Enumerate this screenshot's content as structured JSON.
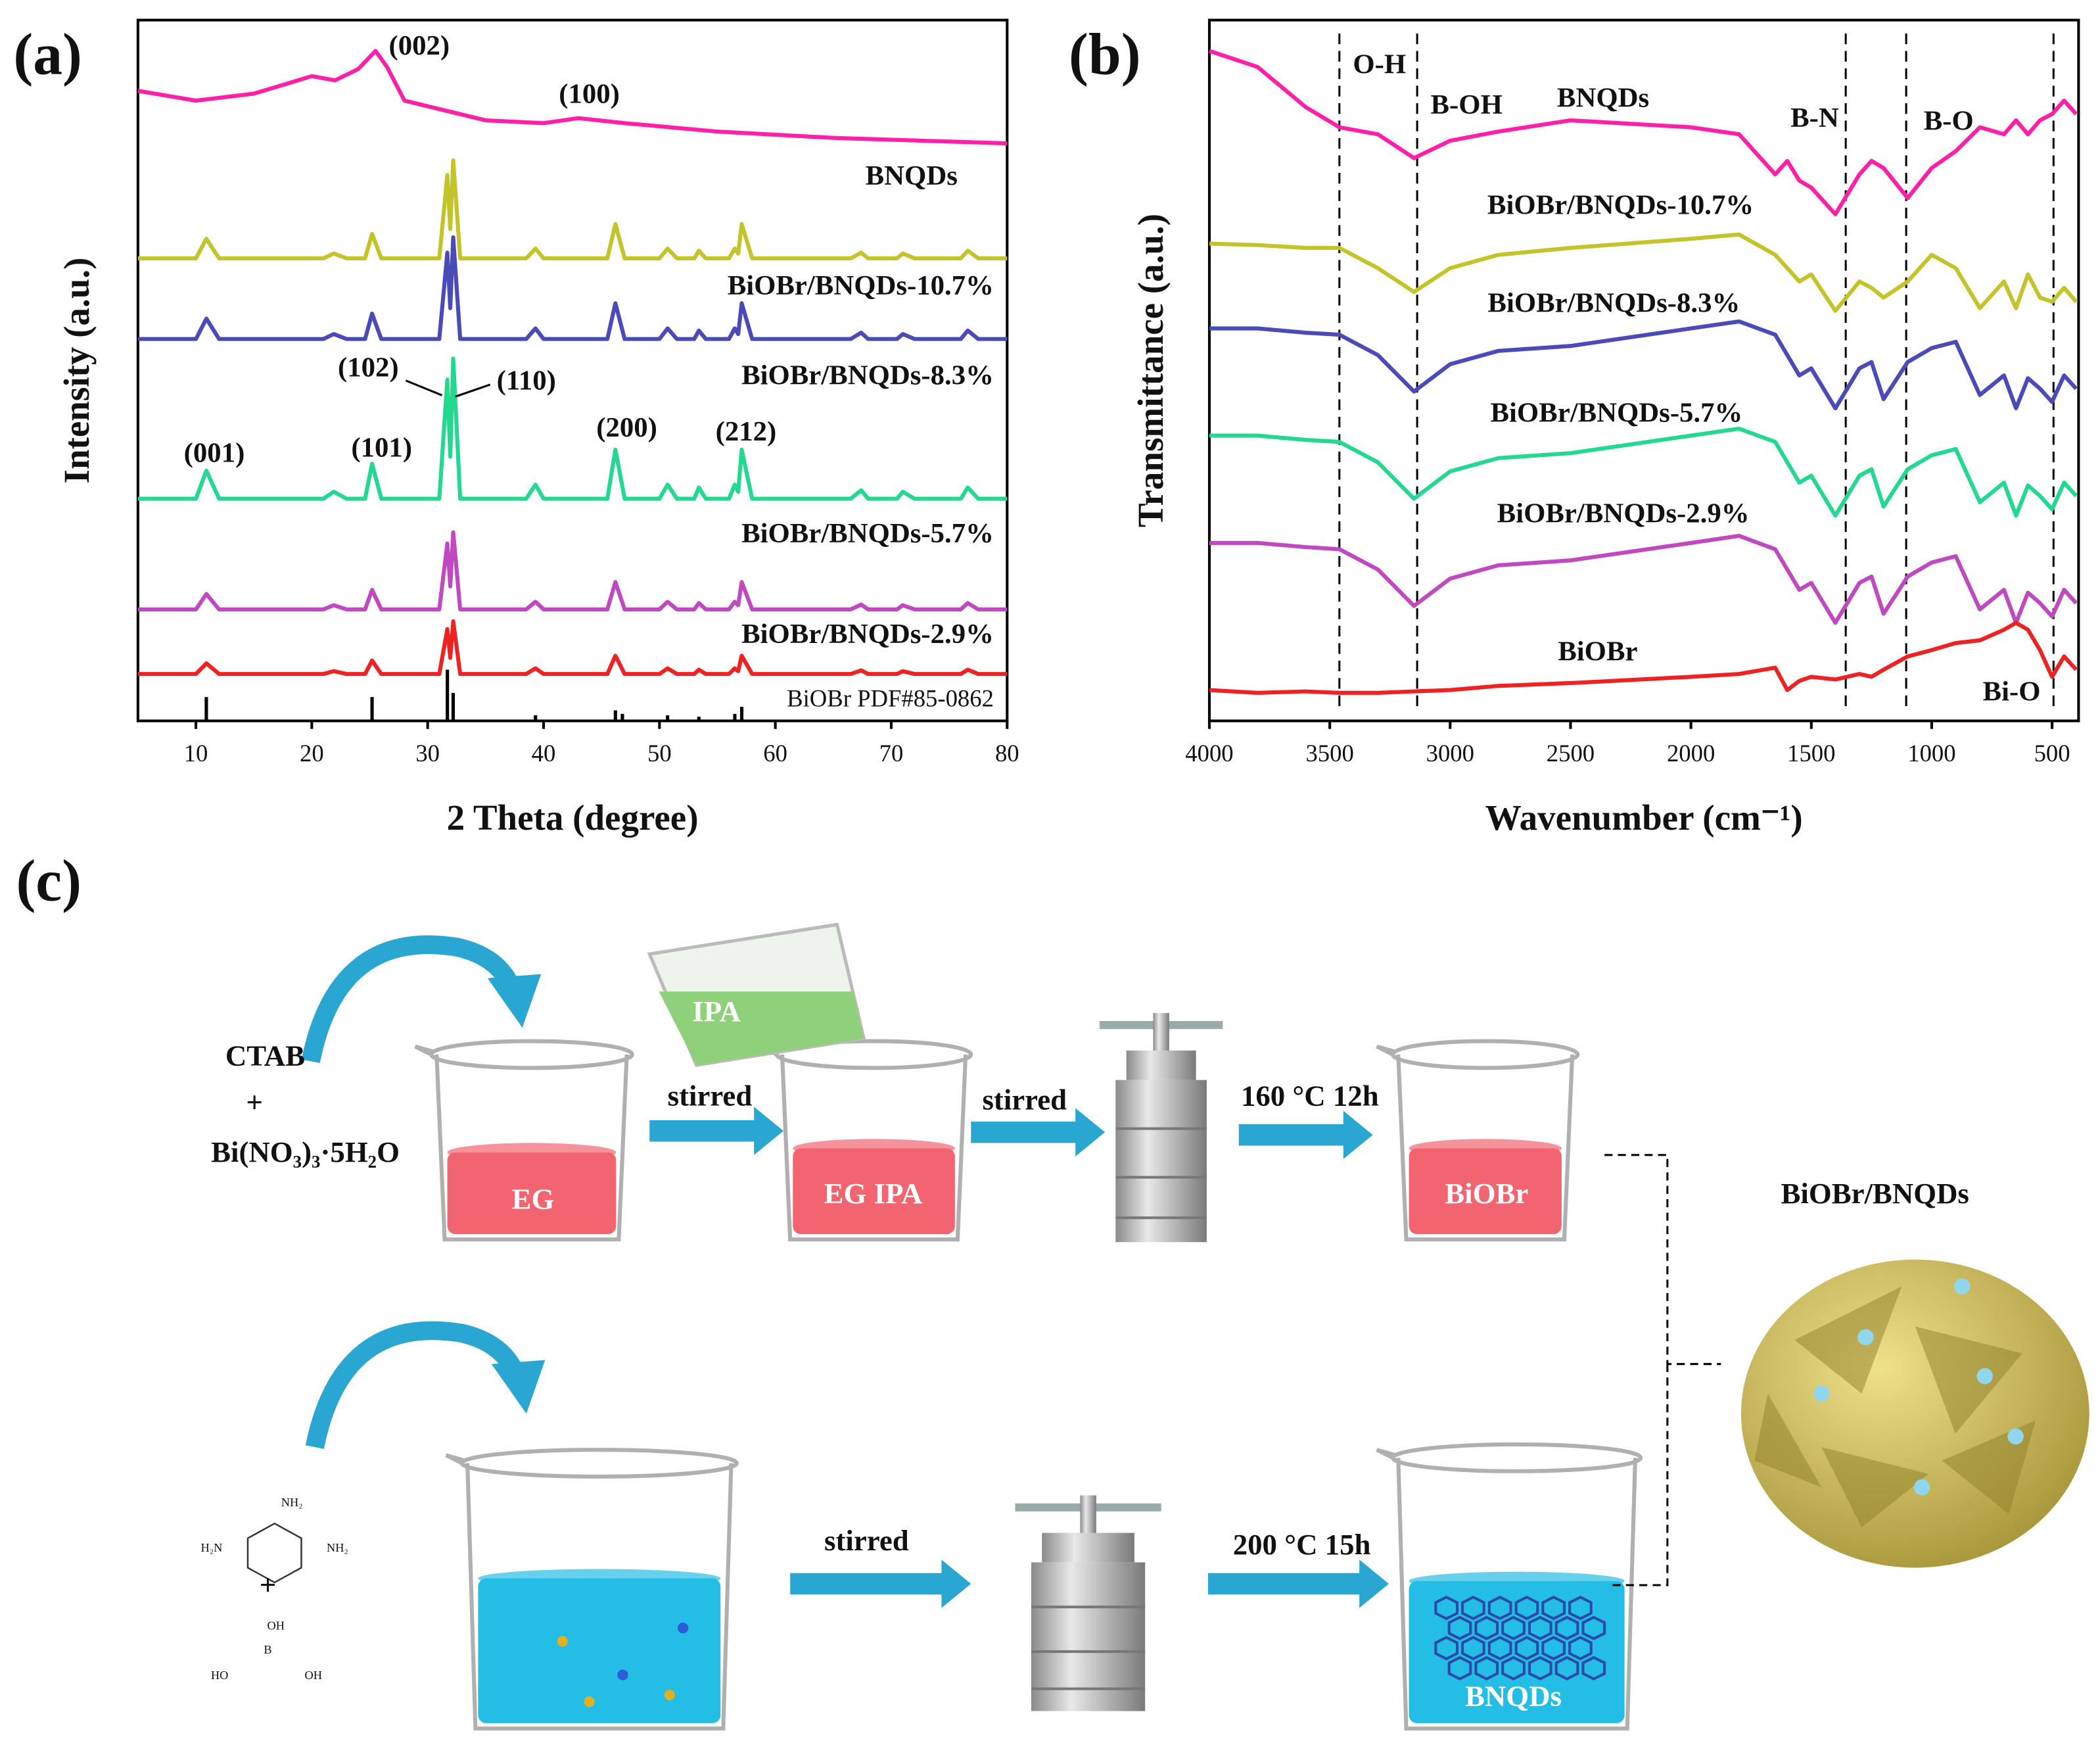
{
  "chart_data": [
    {
      "type": "line",
      "panel_label": "(a)",
      "xlabel": "2 Theta (degree)",
      "ylabel": "Intensity (a.u.)",
      "xlim": [
        5,
        80
      ],
      "xticks": [
        10,
        20,
        30,
        40,
        50,
        60,
        70,
        80
      ],
      "ylim": [
        0,
        100
      ],
      "x": [
        5,
        10,
        10.9,
        12,
        21,
        21.9,
        23,
        24.6,
        25.2,
        26,
        31,
        31.7,
        31.95,
        32.2,
        32.8,
        38.5,
        39.3,
        40,
        45.5,
        46.2,
        47,
        50,
        50.7,
        51.5,
        53,
        53.4,
        54,
        56,
        56.5,
        56.8,
        57.1,
        58,
        66.5,
        67.4,
        68,
        70.5,
        71,
        72,
        76,
        76.6,
        77.5,
        80
      ],
      "series": [
        {
          "name": "BNQDs",
          "color": "#ff1fa8",
          "x": [
            5,
            10,
            15,
            18,
            20,
            22,
            24,
            25.5,
            26.5,
            28,
            35,
            40,
            43,
            47,
            55,
            65,
            80
          ],
          "values": [
            89.9,
            88.5,
            89.5,
            91,
            92,
            91.4,
            93,
            95.6,
            93.3,
            88.5,
            85.7,
            85.3,
            86,
            85.3,
            84.1,
            83.2,
            82.4
          ]
        },
        {
          "name": "BiOBr/BNQDs-10.7%",
          "color": "#c4c42a",
          "values": [
            66,
            66,
            68.8,
            66,
            66,
            66.7,
            66,
            66,
            69.5,
            66,
            66,
            77.9,
            70.2,
            80,
            66,
            66,
            67.4,
            66,
            66,
            70.9,
            66,
            66,
            67.4,
            66,
            66,
            67.1,
            66,
            66,
            67.4,
            66.7,
            70.9,
            66,
            66,
            66.8,
            66,
            66,
            66.7,
            66,
            66,
            67.1,
            66,
            66
          ]
        },
        {
          "name": "BiOBr/BNQDs-8.3%",
          "color": "#4a4ab8",
          "values": [
            54.5,
            54.5,
            57.4,
            54.5,
            54.5,
            55.2,
            54.5,
            54.5,
            58.1,
            54.5,
            54.5,
            66.8,
            58.9,
            69,
            54.5,
            54.5,
            56,
            54.5,
            54.5,
            59.6,
            54.5,
            54.5,
            56,
            54.5,
            54.5,
            55.7,
            54.5,
            54.5,
            56,
            55.2,
            59.6,
            54.5,
            54.5,
            55.4,
            54.5,
            54.5,
            55.2,
            54.5,
            54.5,
            55.7,
            54.5,
            54.5
          ]
        },
        {
          "name": "BiOBr/BNQDs-5.7%",
          "color": "#22d98f",
          "values": [
            31.7,
            31.7,
            35.7,
            31.7,
            31.7,
            32.7,
            31.7,
            31.7,
            36.7,
            31.7,
            31.7,
            48.7,
            37.7,
            51.7,
            31.7,
            31.7,
            33.7,
            31.7,
            31.7,
            38.7,
            31.7,
            31.7,
            33.7,
            31.7,
            31.7,
            33.3,
            31.7,
            31.7,
            33.7,
            32.7,
            38.7,
            31.7,
            31.7,
            32.9,
            31.7,
            31.7,
            32.7,
            31.7,
            31.7,
            33.3,
            31.7,
            31.7
          ]
        },
        {
          "name": "BiOBr/BNQDs-2.9%",
          "color": "#c048c0",
          "values": [
            15.9,
            15.9,
            18.1,
            15.9,
            15.9,
            16.5,
            15.9,
            15.9,
            18.7,
            15.9,
            15.9,
            25.3,
            19.2,
            26.9,
            15.9,
            15.9,
            17,
            15.9,
            15.9,
            19.8,
            15.9,
            15.9,
            17,
            15.9,
            15.9,
            16.8,
            15.9,
            15.9,
            17,
            16.5,
            19.8,
            15.9,
            15.9,
            16.6,
            15.9,
            15.9,
            16.5,
            15.9,
            15.9,
            16.8,
            15.9,
            15.9
          ]
        },
        {
          "color": "#ee2222",
          "values": [
            6.7,
            6.7,
            8.2,
            6.7,
            6.7,
            7.1,
            6.7,
            6.7,
            8.6,
            6.7,
            6.7,
            13.1,
            9,
            14.2,
            6.7,
            6.7,
            7.5,
            6.7,
            6.7,
            9.3,
            6.7,
            6.7,
            7.5,
            6.7,
            6.7,
            7.3,
            6.7,
            6.7,
            7.5,
            7.1,
            9.3,
            6.7,
            6.7,
            7.2,
            6.7,
            6.7,
            7.1,
            6.7,
            6.7,
            7.3,
            6.7,
            6.7
          ]
        }
      ],
      "reference": {
        "name": "BiOBr PDF#85-0862",
        "color": "#000000",
        "x": [
          10.9,
          25.2,
          31.7,
          32.2,
          39.3,
          46.2,
          46.8,
          50.7,
          53.4,
          56.5,
          57.1
        ],
        "values": [
          3.4,
          3.4,
          7.3,
          4,
          0.8,
          1.5,
          1,
          0.8,
          0.6,
          1,
          2
        ]
      },
      "annotations": [
        "(002)",
        "(100)",
        "(001)",
        "(101)",
        "(102)",
        "(110)",
        "(200)",
        "(212)"
      ]
    },
    {
      "type": "line",
      "panel_label": "(b)",
      "xlabel": "Wavenumber (cm⁻¹)",
      "ylabel": "Transmittance (a.u.)",
      "xlim": [
        4000,
        390
      ],
      "xticks": [
        4000,
        3500,
        3000,
        2500,
        2000,
        1500,
        1000,
        500
      ],
      "ylim": [
        0,
        100
      ],
      "x": [
        4000,
        3800,
        3600,
        3460,
        3300,
        3150,
        3000,
        2800,
        2500,
        2000,
        1800,
        1650,
        1600,
        1550,
        1500,
        1400,
        1300,
        1250,
        1200,
        1100,
        1000,
        900,
        800,
        700,
        650,
        600,
        550,
        500,
        450,
        400
      ],
      "series": [
        {
          "name": "BNQDs",
          "color": "#ff1fa8",
          "values": [
            95.6,
            93.3,
            87.6,
            84.7,
            83.7,
            80.3,
            82.8,
            84.1,
            85.7,
            84.7,
            83.7,
            78,
            79.9,
            77.1,
            76.1,
            72.3,
            78,
            79.9,
            78.9,
            74.6,
            78.9,
            81.3,
            84.7,
            83.7,
            85.7,
            83.7,
            85.7,
            86.6,
            88.5,
            86.6
          ]
        },
        {
          "name": "BiOBr/BNQDs-10.7%",
          "color": "#c4c42a",
          "values": [
            68.1,
            67.9,
            67.5,
            67.5,
            64.6,
            61.2,
            64.6,
            66.5,
            67.5,
            68.8,
            69.4,
            66.5,
            64.6,
            62.7,
            63.7,
            58.5,
            62.7,
            61.8,
            60.4,
            62.7,
            66.5,
            64.6,
            58.9,
            62.7,
            58.9,
            63.7,
            60.4,
            59.8,
            61.8,
            59.8
          ]
        },
        {
          "name": "BiOBr/BNQDs-8.3%",
          "color": "#4a4ab8",
          "values": [
            56,
            56,
            55.4,
            55.1,
            52.2,
            47,
            50.9,
            52.8,
            53.5,
            56,
            57,
            55.1,
            52.2,
            49.3,
            50.3,
            44.6,
            50.3,
            51.2,
            45.9,
            51.2,
            53.2,
            54.1,
            46.5,
            49.3,
            44.6,
            48.9,
            47.4,
            45.5,
            49.3,
            47.4
          ]
        },
        {
          "name": "BiOBr/BNQDs-5.7%",
          "color": "#22d98f",
          "values": [
            40.7,
            40.7,
            40.1,
            39.8,
            36.9,
            31.7,
            35.6,
            37.5,
            38.2,
            40.7,
            41.7,
            39.8,
            36.9,
            34,
            35,
            29.3,
            35,
            35.9,
            30.6,
            35.9,
            37.9,
            38.8,
            31.2,
            34,
            29.3,
            33.6,
            32.1,
            30.2,
            34,
            32.1
          ]
        },
        {
          "name": "BiOBr/BNQDs-2.9%",
          "color": "#c048c0",
          "values": [
            25.4,
            25.4,
            24.8,
            24.5,
            21.6,
            16.4,
            20.3,
            22.2,
            22.9,
            25.4,
            26.4,
            24.5,
            21.6,
            18.7,
            19.7,
            14,
            19.7,
            20.6,
            15.3,
            20.6,
            22.6,
            23.5,
            15.9,
            18.7,
            14,
            18.3,
            16.8,
            14.9,
            18.7,
            16.8
          ]
        },
        {
          "name": "BiOBr",
          "color": "#ee2222",
          "values": [
            4.4,
            4,
            4.2,
            4,
            4,
            4.2,
            4.4,
            5,
            5.4,
            6.3,
            6.7,
            7.6,
            4.4,
            5.7,
            6.3,
            5.9,
            6.7,
            6.3,
            7.3,
            9.2,
            10.1,
            11.1,
            11.5,
            13,
            14,
            13,
            10.1,
            6.3,
            9.2,
            7.3
          ]
        }
      ],
      "vlines": [
        {
          "value": 3460,
          "label": "O-H"
        },
        {
          "value": 3137,
          "label": "B-OH"
        },
        {
          "value": 1357,
          "label": "B-N"
        },
        {
          "value": 1106,
          "label": "B-O"
        },
        {
          "value": 494,
          "label": "Bi-O"
        }
      ]
    }
  ],
  "diagram": {
    "panel_label": "(c)",
    "reagents_top": [
      "CTAB",
      "+",
      "Bi(NO₃)₃·5H₂O"
    ],
    "pour": "IPA",
    "beakers": [
      "EG",
      "EG IPA",
      "BiOBr",
      "BNQDs"
    ],
    "arrows": [
      "stirred",
      "stirred",
      "160 °C 12h",
      "stirred",
      "200 °C 15h"
    ],
    "product": "BiOBr/BNQDs",
    "melamine": [
      "NH₂",
      "H₂N",
      "NH₂"
    ],
    "plus": "+",
    "boric_acid": [
      "OH",
      "B",
      "HO",
      "OH"
    ]
  }
}
